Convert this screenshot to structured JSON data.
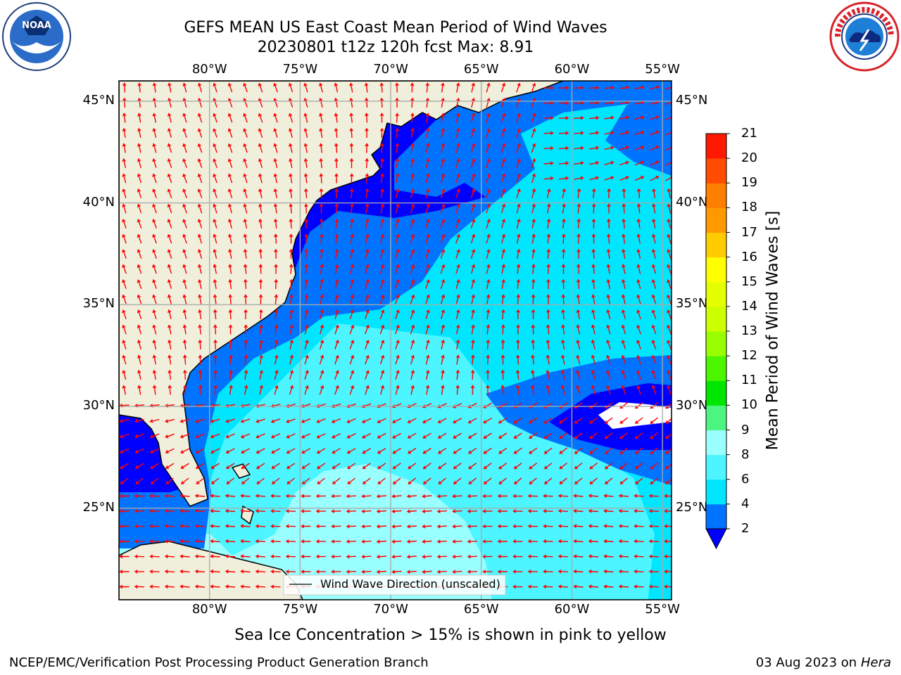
{
  "header": {
    "title_line1": "GEFS MEAN US East Coast Mean Period of Wind Waves",
    "title_line2": "20230801 t12z 120h fcst   Max: 8.91"
  },
  "logos": {
    "left": "noaa-logo",
    "right": "national-weather-service-logo"
  },
  "map": {
    "lon_labels": [
      "80°W",
      "75°W",
      "70°W",
      "65°W",
      "60°W",
      "55°W"
    ],
    "lat_labels": [
      "45°N",
      "40°N",
      "35°N",
      "30°N",
      "25°N"
    ],
    "lon_range": [
      -85,
      -54.5
    ],
    "lat_range": [
      20.5,
      46
    ],
    "legend_label": "Wind Wave Direction (unscaled)",
    "land_color": "#efefdc",
    "arrow_color": "#ff0000"
  },
  "colorbar": {
    "label": "Mean Period of Wind Waves [s]",
    "ticks": [
      "2",
      "4",
      "6",
      "8",
      "9",
      "10",
      "11",
      "12",
      "13",
      "14",
      "15",
      "16",
      "17",
      "18",
      "19",
      "20",
      "21"
    ],
    "colors": [
      "#0073ff",
      "#00e6ff",
      "#4cf5ff",
      "#99ffff",
      "#4cf57f",
      "#00e600",
      "#4cf500",
      "#99ff00",
      "#ccff00",
      "#e6ff00",
      "#ffff00",
      "#ffcc00",
      "#ff9900",
      "#ff7f00",
      "#ff4c00",
      "#ff1900"
    ],
    "under_color": "#0000ff"
  },
  "footer": {
    "note": "Sea Ice Concentration > 15% is shown in pink to yellow",
    "org": "NCEP/EMC/Verification Post Processing Product Generation Branch",
    "date": "03 Aug 2023 on",
    "host": "Hera"
  }
}
